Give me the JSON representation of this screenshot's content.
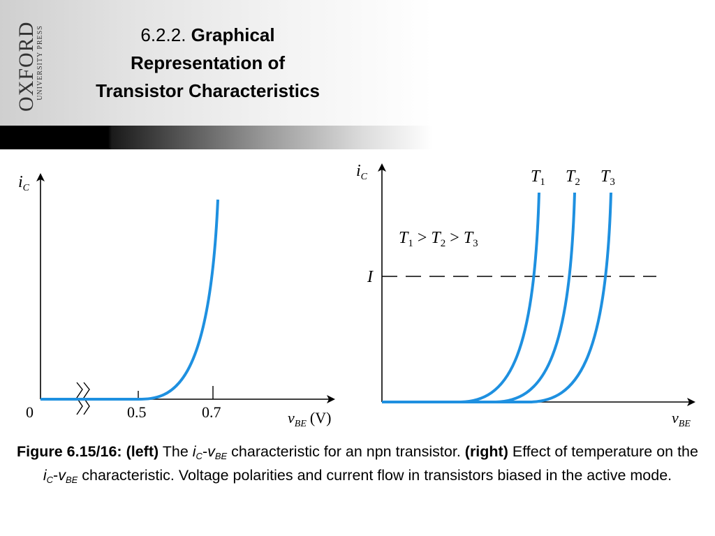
{
  "logo": {
    "main": "OXFORD",
    "sub": "UNIVERSITY PRESS"
  },
  "title": {
    "number": "6.2.2.",
    "line1": "Graphical",
    "line2": "Representation of",
    "line3": "Transistor Characteristics"
  },
  "left_graph": {
    "y_axis_label": {
      "main": "i",
      "sub": "C"
    },
    "x_axis_label": {
      "main": "v",
      "sub": "BE",
      "unit": "(V)"
    },
    "origin_label": "0",
    "ticks": [
      "0.5",
      "0.7"
    ],
    "curve_color": "#1e90e0"
  },
  "right_graph": {
    "y_axis_label": {
      "main": "i",
      "sub": "C"
    },
    "x_axis_label": {
      "main": "v",
      "sub": "BE"
    },
    "curve_labels": [
      {
        "main": "T",
        "sub": "1"
      },
      {
        "main": "T",
        "sub": "2"
      },
      {
        "main": "T",
        "sub": "3"
      }
    ],
    "relation": {
      "t1": "T",
      "s1": "1",
      "gt1": " > ",
      "t2": "T",
      "s2": "2",
      "gt2": " > ",
      "t3": "T",
      "s3": "3"
    },
    "current_label": "I",
    "curve_color": "#1e90e0"
  },
  "caption": {
    "fig_label": "Figure 6.15/16:",
    "left_tag": "(left)",
    "text1": " The ",
    "i": "i",
    "i_sub": "C",
    "dash": "-",
    "v": "v",
    "v_sub": "BE",
    "text2": " characteristic for an npn transistor.  ",
    "right_tag": "(right)",
    "text3": " Effect of temperature on the ",
    "i2": "i",
    "i2_sub": "C",
    "dash2": "-",
    "v2": "v",
    "v2_sub": "BE",
    "text4": " characteristic.  Voltage polarities and current flow in transistors biased in the active mode."
  }
}
